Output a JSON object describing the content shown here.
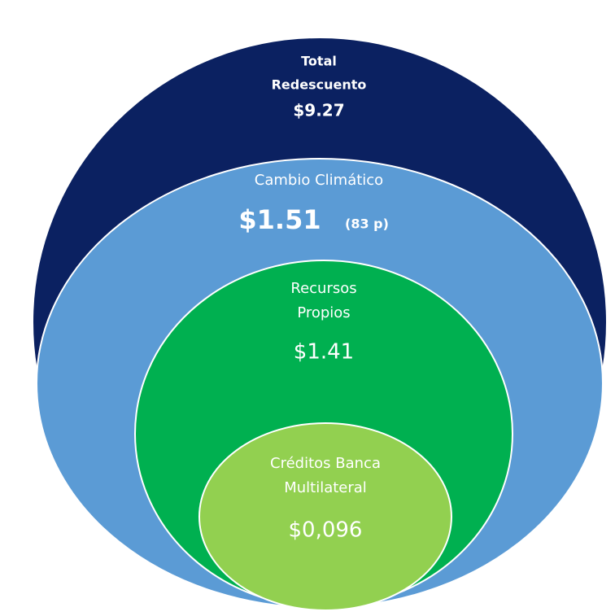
{
  "nodes": [
    {
      "label": [
        "Total",
        "Redescuento"
      ],
      "value": "$9.27"
    },
    {
      "label": [
        "Cambio Climático"
      ],
      "value": "$1.51",
      "note": "(83 p)"
    },
    {
      "label": [
        "Recursos",
        "Propios"
      ],
      "value": "$1.41"
    },
    {
      "label": [
        "Créditos Banca",
        "Multilateral"
      ],
      "value": "$0,096"
    }
  ]
}
